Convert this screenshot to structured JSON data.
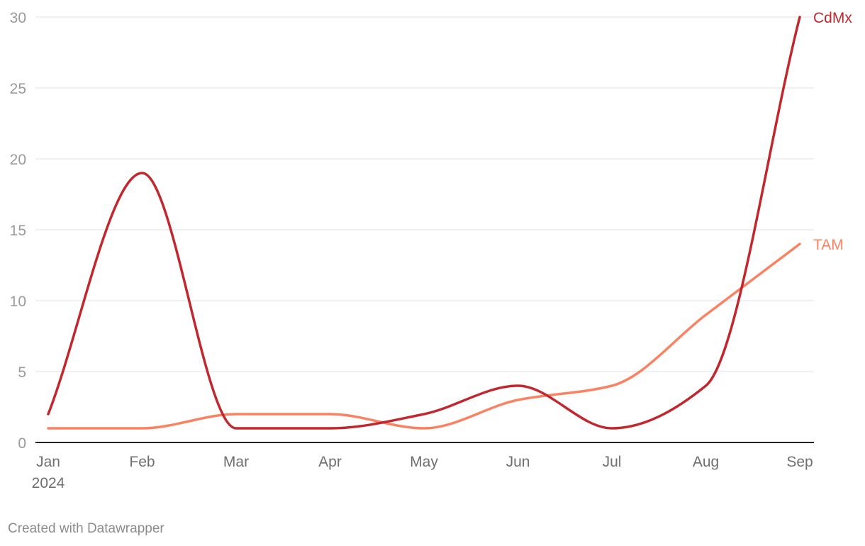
{
  "chart_data": {
    "type": "line",
    "categories": [
      "Jan",
      "Feb",
      "Mar",
      "Apr",
      "May",
      "Jun",
      "Jul",
      "Aug",
      "Sep"
    ],
    "x_sublabel": "2024",
    "ylim": [
      0,
      30
    ],
    "yticks": [
      0,
      5,
      10,
      15,
      20,
      25,
      30
    ],
    "grid": true,
    "legend": "inline-right",
    "series": [
      {
        "name": "CdMx",
        "color": "#c1272d",
        "values": [
          2,
          19,
          1,
          1,
          2,
          4,
          1,
          4,
          30
        ]
      },
      {
        "name": "TAM",
        "color": "#fa8263",
        "values": [
          1,
          1,
          2,
          2,
          1,
          3,
          4,
          9,
          14
        ]
      }
    ]
  },
  "footer": {
    "credit": "Created with Datawrapper"
  }
}
